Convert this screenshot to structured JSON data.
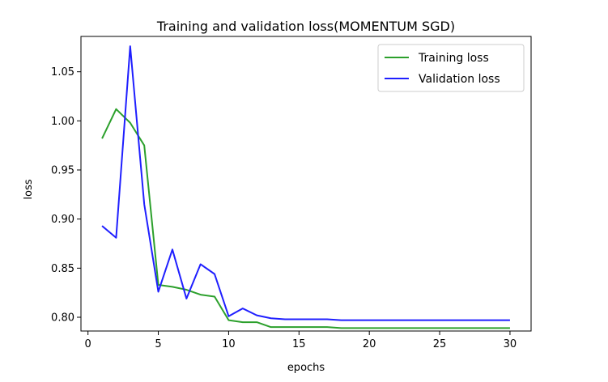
{
  "chart_data": {
    "type": "line",
    "title": "Training and validation loss(MOMENTUM SGD)",
    "xlabel": "epochs",
    "ylabel": "loss",
    "xlim": [
      -0.5,
      31.5
    ],
    "ylim": [
      0.786,
      1.086
    ],
    "xticks": [
      0,
      5,
      10,
      15,
      20,
      25,
      30
    ],
    "yticks": [
      0.8,
      0.85,
      0.9,
      0.95,
      1.0,
      1.05
    ],
    "ytick_labels": [
      "0.80",
      "0.85",
      "0.90",
      "0.95",
      "1.00",
      "1.05"
    ],
    "grid": false,
    "legend_position": "upper right",
    "x": [
      1,
      2,
      3,
      4,
      5,
      6,
      7,
      8,
      9,
      10,
      11,
      12,
      13,
      14,
      15,
      16,
      17,
      18,
      19,
      20,
      21,
      22,
      23,
      24,
      25,
      26,
      27,
      28,
      29,
      30
    ],
    "series": [
      {
        "name": "Training loss",
        "color": "#2ca02c",
        "values": [
          0.982,
          1.012,
          0.998,
          0.975,
          0.833,
          0.831,
          0.828,
          0.823,
          0.821,
          0.797,
          0.795,
          0.795,
          0.79,
          0.79,
          0.79,
          0.79,
          0.79,
          0.789,
          0.789,
          0.789,
          0.789,
          0.789,
          0.789,
          0.789,
          0.789,
          0.789,
          0.789,
          0.789,
          0.789,
          0.789
        ]
      },
      {
        "name": "Validation loss",
        "color": "#1f1fff",
        "values": [
          0.893,
          0.881,
          1.076,
          0.915,
          0.826,
          0.869,
          0.819,
          0.854,
          0.844,
          0.801,
          0.809,
          0.802,
          0.799,
          0.798,
          0.798,
          0.798,
          0.798,
          0.797,
          0.797,
          0.797,
          0.797,
          0.797,
          0.797,
          0.797,
          0.797,
          0.797,
          0.797,
          0.797,
          0.797,
          0.797
        ]
      }
    ]
  }
}
